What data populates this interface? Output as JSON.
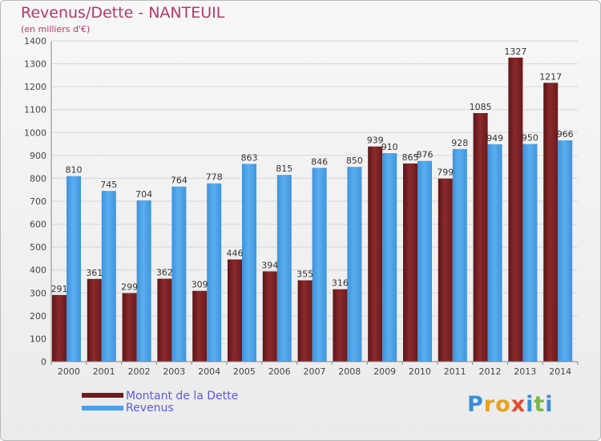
{
  "title": "Revenus/Dette - NANTEUIL",
  "subtitle": "(en milliers d'€)",
  "legend": {
    "debt_label": "Montant de la Dette",
    "revenue_label": "Revenus"
  },
  "logo": {
    "letters": [
      "P",
      "r",
      "o",
      "x",
      "i",
      "t",
      "i"
    ],
    "colors": [
      "#3a8fd6",
      "#e6a21e",
      "#e6a21e",
      "#e34b2c",
      "#3a8fd6",
      "#7ab648",
      "#3a8fd6"
    ]
  },
  "colors": {
    "debt": "#7a1f22",
    "revenue": "#4aa0e6",
    "title": "#b5376a",
    "legend_text": "#5a5ae6"
  },
  "chart_data": {
    "type": "bar",
    "categories": [
      "2000",
      "2001",
      "2002",
      "2003",
      "2004",
      "2005",
      "2006",
      "2007",
      "2008",
      "2009",
      "2010",
      "2011",
      "2012",
      "2013",
      "2014"
    ],
    "series": [
      {
        "name": "Montant de la Dette",
        "values": [
          291,
          361,
          299,
          362,
          309,
          446,
          394,
          355,
          316,
          939,
          865,
          799,
          1085,
          1327,
          1217
        ]
      },
      {
        "name": "Revenus",
        "values": [
          810,
          745,
          704,
          764,
          778,
          863,
          815,
          846,
          850,
          910,
          876,
          928,
          949,
          950,
          966
        ]
      }
    ],
    "ylim": [
      0,
      1400
    ],
    "yticks": [
      0,
      100,
      200,
      300,
      400,
      500,
      600,
      700,
      800,
      900,
      1000,
      1100,
      1200,
      1300,
      1400
    ],
    "grid": true,
    "legend_position": "bottom-left"
  }
}
